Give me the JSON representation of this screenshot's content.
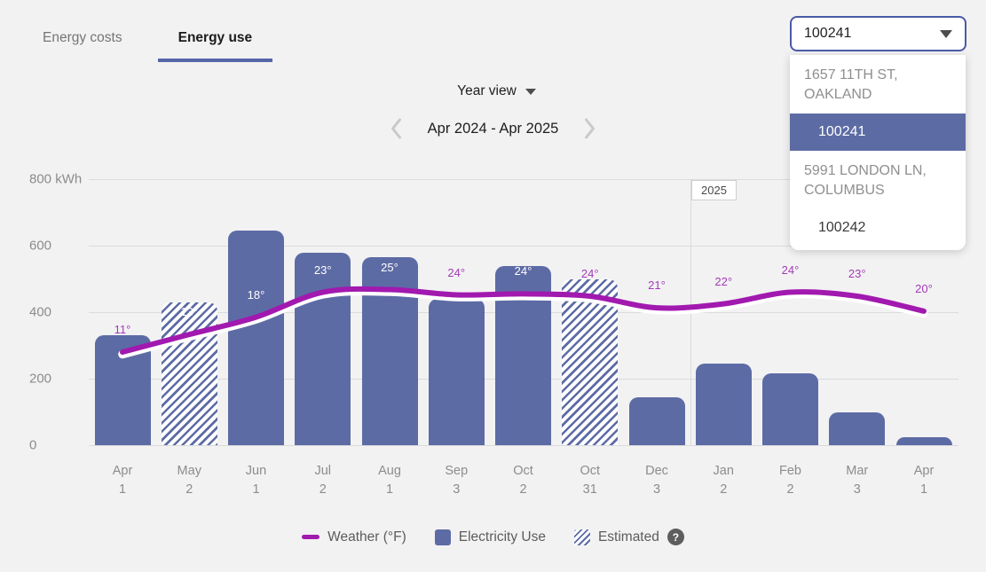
{
  "tabs": [
    {
      "label": "Energy costs",
      "active": false
    },
    {
      "label": "Energy use",
      "active": true
    }
  ],
  "account_select": {
    "value": "100241",
    "options": [
      {
        "address": "1657 11TH ST, OAKLAND",
        "account": "100241",
        "selected": true
      },
      {
        "address": "5991 LONDON LN, COLUMBUS",
        "account": "100242",
        "selected": false
      }
    ]
  },
  "controls": {
    "view_label": "Year view",
    "range_label": "Apr 2024 - Apr 2025"
  },
  "chart_data": {
    "type": "bar",
    "title": "",
    "categories": [
      {
        "month": "Apr",
        "day": "1"
      },
      {
        "month": "May",
        "day": "2"
      },
      {
        "month": "Jun",
        "day": "1"
      },
      {
        "month": "Jul",
        "day": "2"
      },
      {
        "month": "Aug",
        "day": "1"
      },
      {
        "month": "Sep",
        "day": "3"
      },
      {
        "month": "Oct",
        "day": "2"
      },
      {
        "month": "Oct",
        "day": "31"
      },
      {
        "month": "Dec",
        "day": "3"
      },
      {
        "month": "Jan",
        "day": "2"
      },
      {
        "month": "Feb",
        "day": "2"
      },
      {
        "month": "Mar",
        "day": "3"
      },
      {
        "month": "Apr",
        "day": "1"
      }
    ],
    "series": [
      {
        "name": "Electricity Use",
        "type": "bar",
        "unit": "kWh",
        "values": [
          330,
          430,
          645,
          580,
          565,
          440,
          540,
          500,
          145,
          245,
          215,
          100,
          25
        ],
        "estimated": [
          false,
          true,
          false,
          false,
          false,
          false,
          false,
          true,
          false,
          false,
          false,
          false,
          false
        ]
      },
      {
        "name": "Weather (°F)",
        "type": "line",
        "temps_f": [
          11,
          13,
          18,
          23,
          25,
          24,
          24,
          24,
          21,
          22,
          24,
          23,
          20
        ],
        "labels": [
          "11°",
          "13°",
          "18°",
          "23°",
          "25°",
          "24°",
          "24°",
          "24°",
          "21°",
          "22°",
          "24°",
          "23°",
          "20°"
        ],
        "label_colors": [
          "purple",
          "white",
          "white",
          "white",
          "white",
          "purple",
          "white",
          "purple",
          "purple",
          "purple",
          "purple",
          "purple",
          "purple"
        ],
        "y_kwh_scale": [
          280,
          333,
          385,
          460,
          468,
          452,
          455,
          448,
          413,
          425,
          460,
          448,
          403
        ]
      }
    ],
    "y_ticks": [
      {
        "value": 0,
        "label": "0"
      },
      {
        "value": 200,
        "label": "200"
      },
      {
        "value": 400,
        "label": "400"
      },
      {
        "value": 600,
        "label": "600"
      },
      {
        "value": 800,
        "label": "800 kWh"
      }
    ],
    "ylim": [
      0,
      800
    ],
    "grid": "horizontal",
    "year_divider": {
      "label": "2025",
      "between_index": [
        8,
        9
      ]
    },
    "legend": [
      {
        "label": "Weather (°F)",
        "swatch": "line"
      },
      {
        "label": "Electricity Use",
        "swatch": "solid"
      },
      {
        "label": "Estimated",
        "swatch": "hatched",
        "has_help_icon": true
      }
    ],
    "legend_position": "bottom"
  },
  "help_icon_glyph": "?",
  "colors": {
    "bar": "#5D6BA5",
    "line": "#A119AF",
    "temp_label": "#A53AB8",
    "select_border": "#4A5AA8",
    "highlight": "#5C6BA3",
    "tab_underline": "#5766A8",
    "grid": "#DBDBDB"
  }
}
